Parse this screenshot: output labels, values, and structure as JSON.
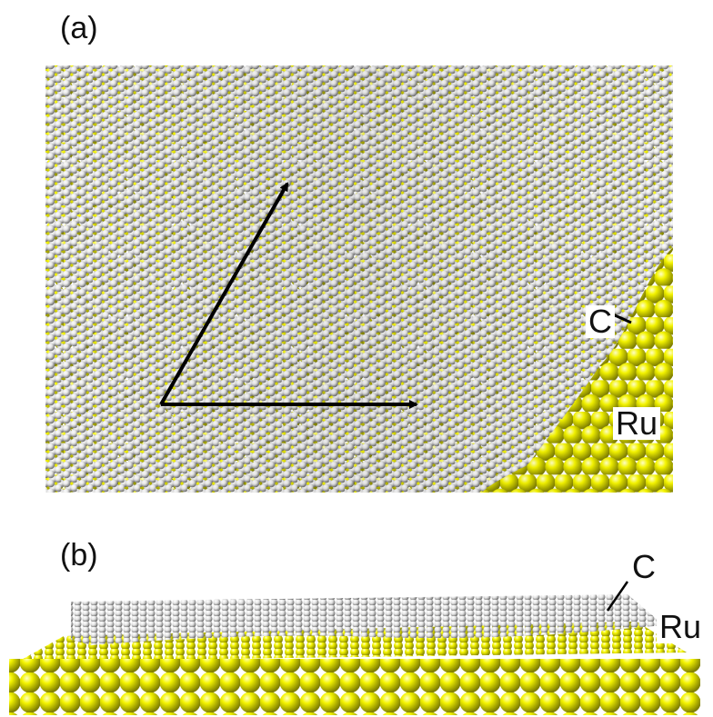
{
  "figure": {
    "panel_a": {
      "label": "(a)",
      "carbon_label": "C",
      "ruthenium_label": "Ru"
    },
    "panel_b": {
      "label": "(b)",
      "carbon_label": "C",
      "ruthenium_label": "Ru"
    }
  },
  "colors": {
    "ruthenium": "#f2f200",
    "ruthenium_shade": "#8a8a00",
    "carbon": "#f2f2f2",
    "carbon_shade": "#7a7a7a",
    "arrows": "#000000"
  }
}
